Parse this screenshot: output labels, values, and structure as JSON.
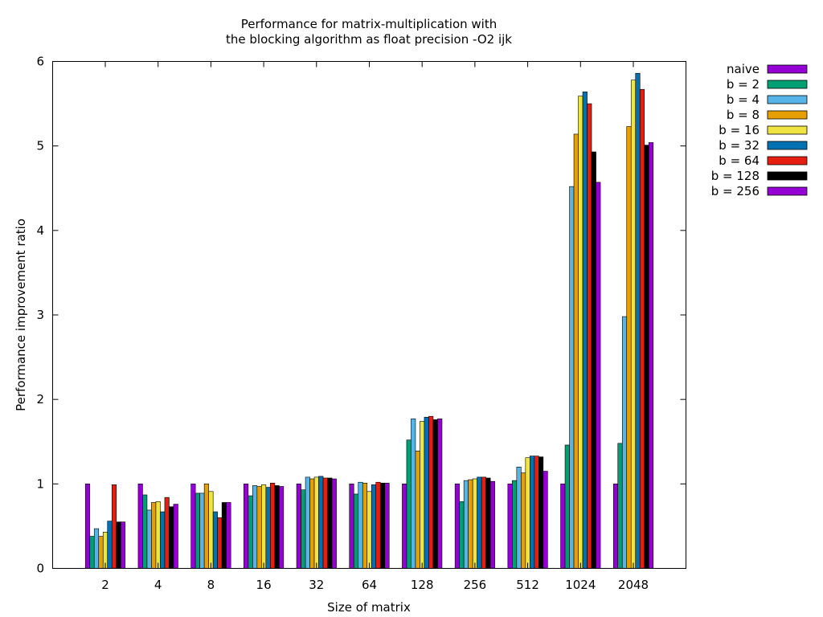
{
  "chart_data": {
    "type": "bar",
    "title_line1": "Performance for matrix-multiplication with",
    "title_line2": "the blocking algorithm as float precision -O2 ijk",
    "xlabel": "Size of matrix",
    "ylabel": "Performance improvement ratio",
    "ylim": [
      0,
      6
    ],
    "yticks": [
      "0",
      "1",
      "2",
      "3",
      "4",
      "5",
      "6"
    ],
    "categories": [
      "2",
      "4",
      "8",
      "16",
      "32",
      "64",
      "128",
      "256",
      "512",
      "1024",
      "2048"
    ],
    "legend_position": "top-right, outside plot",
    "series": [
      {
        "name": "naive",
        "color": "#9400d3",
        "values": [
          1.0,
          1.0,
          1.0,
          1.0,
          1.0,
          1.0,
          1.0,
          1.0,
          1.0,
          1.0,
          1.0
        ]
      },
      {
        "name": "b = 2",
        "color": "#009e73",
        "values": [
          0.38,
          0.87,
          0.89,
          0.86,
          0.93,
          0.88,
          1.52,
          0.79,
          1.04,
          1.46,
          1.48
        ]
      },
      {
        "name": "b = 4",
        "color": "#56b4e9",
        "values": [
          0.47,
          0.69,
          0.89,
          0.98,
          1.08,
          1.02,
          1.77,
          1.04,
          1.2,
          4.52,
          2.98
        ]
      },
      {
        "name": "b = 8",
        "color": "#e69f00",
        "values": [
          0.38,
          0.78,
          1.0,
          0.97,
          1.06,
          1.01,
          1.39,
          1.05,
          1.13,
          5.14,
          5.23
        ]
      },
      {
        "name": "b = 16",
        "color": "#f0e442",
        "values": [
          0.43,
          0.79,
          0.91,
          0.99,
          1.08,
          0.91,
          1.74,
          1.06,
          1.31,
          5.59,
          5.78
        ]
      },
      {
        "name": "b = 32",
        "color": "#0072b2",
        "values": [
          0.56,
          0.67,
          0.67,
          0.96,
          1.09,
          0.99,
          1.79,
          1.08,
          1.33,
          5.64,
          5.86
        ]
      },
      {
        "name": "b = 64",
        "color": "#e51e10",
        "values": [
          0.99,
          0.84,
          0.6,
          1.01,
          1.07,
          1.02,
          1.8,
          1.08,
          1.33,
          5.5,
          5.67
        ]
      },
      {
        "name": "b = 128",
        "color": "#000000",
        "values": [
          0.55,
          0.73,
          0.78,
          0.98,
          1.07,
          1.01,
          1.76,
          1.07,
          1.32,
          4.93,
          5.01
        ]
      },
      {
        "name": "b = 256",
        "color": "#9400d3",
        "values": [
          0.55,
          0.76,
          0.78,
          0.97,
          1.06,
          1.01,
          1.77,
          1.03,
          1.15,
          4.57,
          5.04
        ]
      }
    ]
  }
}
